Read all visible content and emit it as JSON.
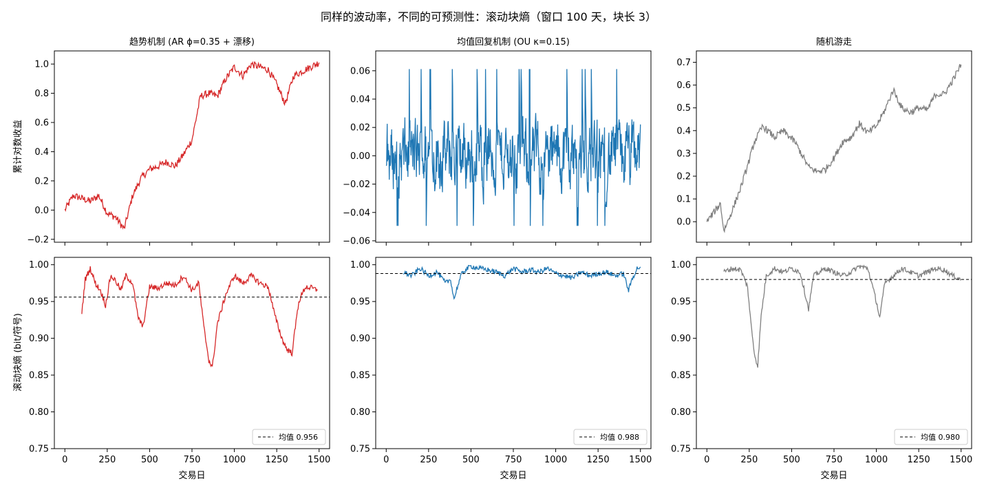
{
  "figure": {
    "suptitle": "同样的波动率，不同的可预测性：滚动块熵（窗口 100 天，块长 3）",
    "xlabel": "交易日",
    "ylabel_top": "累计对数收益",
    "ylabel_bottom": "滚动块熵 (bit/符号)"
  },
  "colors": {
    "trend": "#d62728",
    "meanrev": "#1f77b4",
    "random": "#7f7f7f",
    "mean_line": "#000000"
  },
  "chart_data": [
    {
      "type": "line",
      "panel": "top-left",
      "title": "趋势机制 (AR ϕ=0.35 + 漂移)",
      "xlabel": "",
      "ylabel": "累计对数收益",
      "xlim": [
        -62,
        1562
      ],
      "ylim": [
        -0.22,
        1.09
      ],
      "xticks": [
        0,
        250,
        500,
        750,
        1000,
        1250,
        1500
      ],
      "xtick_labels_shown": false,
      "yticks": [
        -0.2,
        0.0,
        0.2,
        0.4,
        0.6,
        0.8,
        1.0
      ],
      "ytick_labels": [
        "−0.2",
        "0.0",
        "0.2",
        "0.4",
        "0.6",
        "0.8",
        "1.0"
      ],
      "series": [
        {
          "color": "#d62728",
          "kind": "trend",
          "x": [
            0,
            50,
            100,
            150,
            200,
            250,
            300,
            350,
            400,
            450,
            500,
            550,
            600,
            650,
            700,
            750,
            800,
            850,
            900,
            950,
            1000,
            1050,
            1100,
            1150,
            1200,
            1250,
            1300,
            1350,
            1400,
            1450,
            1500
          ],
          "y": [
            0.0,
            0.1,
            0.08,
            0.06,
            0.1,
            -0.02,
            -0.05,
            -0.13,
            0.1,
            0.22,
            0.28,
            0.3,
            0.33,
            0.3,
            0.38,
            0.48,
            0.78,
            0.8,
            0.78,
            0.9,
            0.98,
            0.92,
            1.0,
            0.98,
            0.96,
            0.86,
            0.73,
            0.92,
            0.95,
            0.98,
            1.01
          ],
          "noise": 0.025
        }
      ]
    },
    {
      "type": "line",
      "panel": "top-middle",
      "title": "均值回复机制 (OU κ=0.15)",
      "xlabel": "",
      "ylabel": "",
      "xlim": [
        -62,
        1562
      ],
      "ylim": [
        -0.061,
        0.074
      ],
      "xticks": [
        0,
        250,
        500,
        750,
        1000,
        1250,
        1500
      ],
      "xtick_labels_shown": false,
      "yticks": [
        -0.06,
        -0.04,
        -0.02,
        0.0,
        0.02,
        0.04,
        0.06
      ],
      "ytick_labels": [
        "−0.06",
        "−0.04",
        "−0.02",
        "0.00",
        "0.02",
        "0.04",
        "0.06"
      ],
      "series": [
        {
          "color": "#1f77b4",
          "kind": "oscillating",
          "x_range": [
            0,
            1500
          ],
          "amplitude": 0.022,
          "ymin": -0.055,
          "ymax": 0.068
        }
      ]
    },
    {
      "type": "line",
      "panel": "top-right",
      "title": "随机游走",
      "xlabel": "",
      "ylabel": "",
      "xlim": [
        -62,
        1562
      ],
      "ylim": [
        -0.09,
        0.75
      ],
      "xticks": [
        0,
        250,
        500,
        750,
        1000,
        1250,
        1500
      ],
      "xtick_labels_shown": false,
      "yticks": [
        0.0,
        0.1,
        0.2,
        0.3,
        0.4,
        0.5,
        0.6,
        0.7
      ],
      "ytick_labels": [
        "0.0",
        "0.1",
        "0.2",
        "0.3",
        "0.4",
        "0.5",
        "0.6",
        "0.7"
      ],
      "series": [
        {
          "color": "#7f7f7f",
          "kind": "trend",
          "x": [
            0,
            50,
            80,
            100,
            150,
            200,
            250,
            280,
            330,
            400,
            450,
            520,
            600,
            650,
            700,
            750,
            800,
            850,
            900,
            950,
            1000,
            1050,
            1100,
            1150,
            1200,
            1250,
            1300,
            1350,
            1400,
            1450,
            1500
          ],
          "y": [
            0.0,
            0.05,
            0.08,
            -0.04,
            0.05,
            0.15,
            0.27,
            0.35,
            0.42,
            0.37,
            0.4,
            0.35,
            0.24,
            0.22,
            0.23,
            0.28,
            0.35,
            0.37,
            0.43,
            0.39,
            0.42,
            0.49,
            0.58,
            0.5,
            0.48,
            0.5,
            0.49,
            0.56,
            0.56,
            0.62,
            0.69
          ],
          "noise": 0.015
        }
      ]
    },
    {
      "type": "line",
      "panel": "bottom-left",
      "title": "",
      "xlabel": "交易日",
      "ylabel": "滚动块熵 (bit/符号)",
      "xlim": [
        -62,
        1562
      ],
      "ylim": [
        0.75,
        1.01
      ],
      "xticks": [
        0,
        250,
        500,
        750,
        1000,
        1250,
        1500
      ],
      "xtick_labels": [
        "0",
        "250",
        "500",
        "750",
        "1000",
        "1250",
        "1500"
      ],
      "yticks": [
        0.75,
        0.8,
        0.85,
        0.9,
        0.95,
        1.0
      ],
      "ytick_labels": [
        "0.75",
        "0.80",
        "0.85",
        "0.90",
        "0.95",
        "1.00"
      ],
      "mean_value": 0.956,
      "legend_label": "均值 0.956",
      "legend_placement": "lower-right",
      "series": [
        {
          "color": "#d62728",
          "kind": "trend",
          "x": [
            100,
            120,
            150,
            180,
            210,
            240,
            270,
            300,
            330,
            360,
            400,
            430,
            460,
            500,
            550,
            600,
            650,
            700,
            750,
            790,
            820,
            850,
            870,
            900,
            950,
            1000,
            1050,
            1100,
            1150,
            1200,
            1240,
            1280,
            1310,
            1340,
            1380,
            1420,
            1460,
            1490
          ],
          "y": [
            0.935,
            0.98,
            0.995,
            0.975,
            0.965,
            0.945,
            0.985,
            0.978,
            0.965,
            0.985,
            0.975,
            0.93,
            0.915,
            0.97,
            0.968,
            0.975,
            0.972,
            0.985,
            0.965,
            0.975,
            0.915,
            0.87,
            0.86,
            0.92,
            0.96,
            0.985,
            0.975,
            0.985,
            0.975,
            0.97,
            0.93,
            0.9,
            0.885,
            0.88,
            0.95,
            0.97,
            0.968,
            0.965
          ],
          "noise": 0.004
        }
      ]
    },
    {
      "type": "line",
      "panel": "bottom-middle",
      "title": "",
      "xlabel": "交易日",
      "ylabel": "",
      "xlim": [
        -62,
        1562
      ],
      "ylim": [
        0.75,
        1.01
      ],
      "xticks": [
        0,
        250,
        500,
        750,
        1000,
        1250,
        1500
      ],
      "xtick_labels": [
        "0",
        "250",
        "500",
        "750",
        "1000",
        "1250",
        "1500"
      ],
      "yticks": [
        0.75,
        0.8,
        0.85,
        0.9,
        0.95,
        1.0
      ],
      "ytick_labels": [
        "0.75",
        "0.80",
        "0.85",
        "0.90",
        "0.95",
        "1.00"
      ],
      "mean_value": 0.988,
      "legend_label": "均值 0.988",
      "legend_placement": "lower-right",
      "series": [
        {
          "color": "#1f77b4",
          "kind": "trend",
          "x": [
            100,
            150,
            200,
            250,
            300,
            350,
            380,
            400,
            420,
            450,
            500,
            550,
            600,
            650,
            700,
            750,
            800,
            850,
            900,
            950,
            1000,
            1050,
            1100,
            1150,
            1200,
            1250,
            1300,
            1350,
            1400,
            1430,
            1450,
            1480,
            1500
          ],
          "y": [
            0.99,
            0.985,
            0.995,
            0.985,
            0.99,
            0.975,
            0.98,
            0.953,
            0.97,
            0.99,
            0.998,
            0.995,
            0.993,
            0.99,
            0.985,
            0.995,
            0.99,
            0.993,
            0.99,
            0.995,
            0.988,
            0.985,
            0.982,
            0.99,
            0.985,
            0.988,
            0.99,
            0.985,
            0.988,
            0.965,
            0.98,
            0.995,
            0.997
          ],
          "noise": 0.0035
        }
      ]
    },
    {
      "type": "line",
      "panel": "bottom-right",
      "title": "",
      "xlabel": "交易日",
      "ylabel": "",
      "xlim": [
        -62,
        1562
      ],
      "ylim": [
        0.75,
        1.01
      ],
      "xticks": [
        0,
        250,
        500,
        750,
        1000,
        1250,
        1500
      ],
      "xtick_labels": [
        "0",
        "250",
        "500",
        "750",
        "1000",
        "1250",
        "1500"
      ],
      "yticks": [
        0.75,
        0.8,
        0.85,
        0.9,
        0.95,
        1.0
      ],
      "ytick_labels": [
        "0.75",
        "0.80",
        "0.85",
        "0.90",
        "0.95",
        "1.00"
      ],
      "mean_value": 0.98,
      "legend_label": "均值 0.980",
      "legend_placement": "lower-right",
      "series": [
        {
          "color": "#7f7f7f",
          "kind": "trend",
          "x": [
            100,
            150,
            200,
            240,
            260,
            280,
            300,
            320,
            350,
            400,
            450,
            500,
            550,
            580,
            600,
            630,
            700,
            750,
            800,
            850,
            900,
            950,
            1000,
            1020,
            1050,
            1100,
            1150,
            1200,
            1250,
            1300,
            1350,
            1400,
            1450,
            1500
          ],
          "y": [
            0.99,
            0.995,
            0.993,
            0.97,
            0.92,
            0.88,
            0.862,
            0.93,
            0.985,
            0.995,
            0.99,
            0.995,
            0.99,
            0.96,
            0.94,
            0.985,
            0.995,
            0.99,
            0.985,
            0.99,
            0.998,
            0.995,
            0.95,
            0.928,
            0.975,
            0.985,
            0.995,
            0.99,
            0.985,
            0.99,
            0.995,
            0.993,
            0.985,
            0.98
          ],
          "noise": 0.0035
        }
      ]
    }
  ]
}
